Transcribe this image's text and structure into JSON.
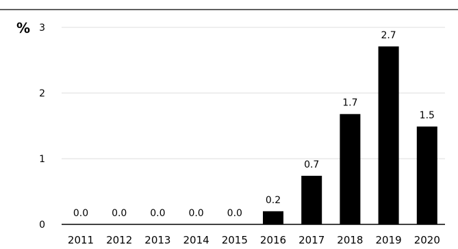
{
  "chart_data": {
    "type": "bar",
    "unit_label": "%",
    "categories": [
      "2011",
      "2012",
      "2013",
      "2014",
      "2015",
      "2016",
      "2017",
      "2018",
      "2019",
      "2020"
    ],
    "values": [
      0.0,
      0.0,
      0.0,
      0.0,
      0.0,
      0.2,
      0.74,
      1.68,
      2.71,
      1.49
    ],
    "data_labels": [
      "0.0",
      "0.0",
      "0.0",
      "0.0",
      "0.0",
      "0.2",
      "0.7",
      "1.7",
      "2.7",
      "1.5"
    ],
    "yticks": [
      "0",
      "1",
      "2",
      "3"
    ],
    "ylim": [
      0,
      3
    ],
    "grid": true,
    "bar_color": "#000000",
    "grid_color": "#dcdcdc",
    "frame_color": "#000000"
  }
}
